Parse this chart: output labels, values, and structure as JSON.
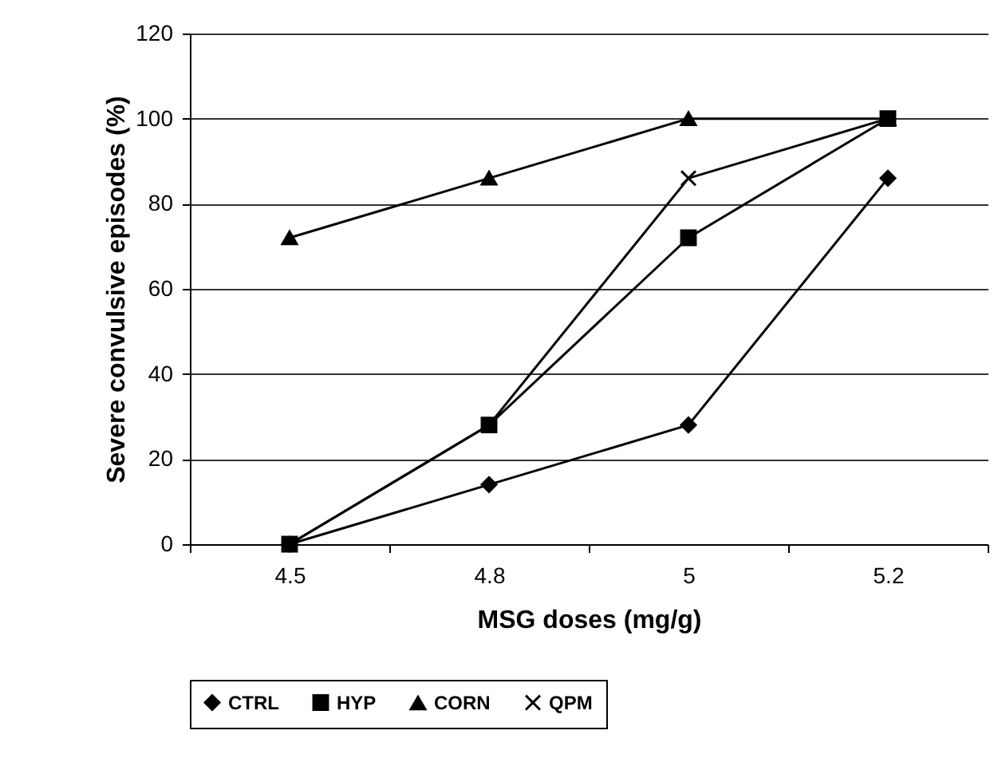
{
  "chart_data": {
    "type": "line",
    "xlabel": "MSG doses (mg/g)",
    "ylabel": "Severe convulsive episodes (%)",
    "categories": [
      "4.5",
      "4.8",
      "5",
      "5.2"
    ],
    "series": [
      {
        "name": "CTRL",
        "color": "#000000",
        "marker": "diamond",
        "values": [
          0,
          14,
          28,
          86
        ]
      },
      {
        "name": "HYP",
        "color": "#000000",
        "marker": "square",
        "values": [
          0,
          28,
          72,
          100
        ]
      },
      {
        "name": "CORN",
        "color": "#000000",
        "marker": "triangle",
        "values": [
          72,
          86,
          100,
          100
        ]
      },
      {
        "name": "QPM",
        "color": "#000000",
        "marker": "cross",
        "values": [
          0,
          28,
          86,
          100
        ]
      }
    ],
    "ylim": [
      0,
      120
    ],
    "yticks": [
      0,
      20,
      40,
      60,
      80,
      100,
      120
    ],
    "grid": "y",
    "legend": "bottom",
    "line_style": "solid"
  }
}
